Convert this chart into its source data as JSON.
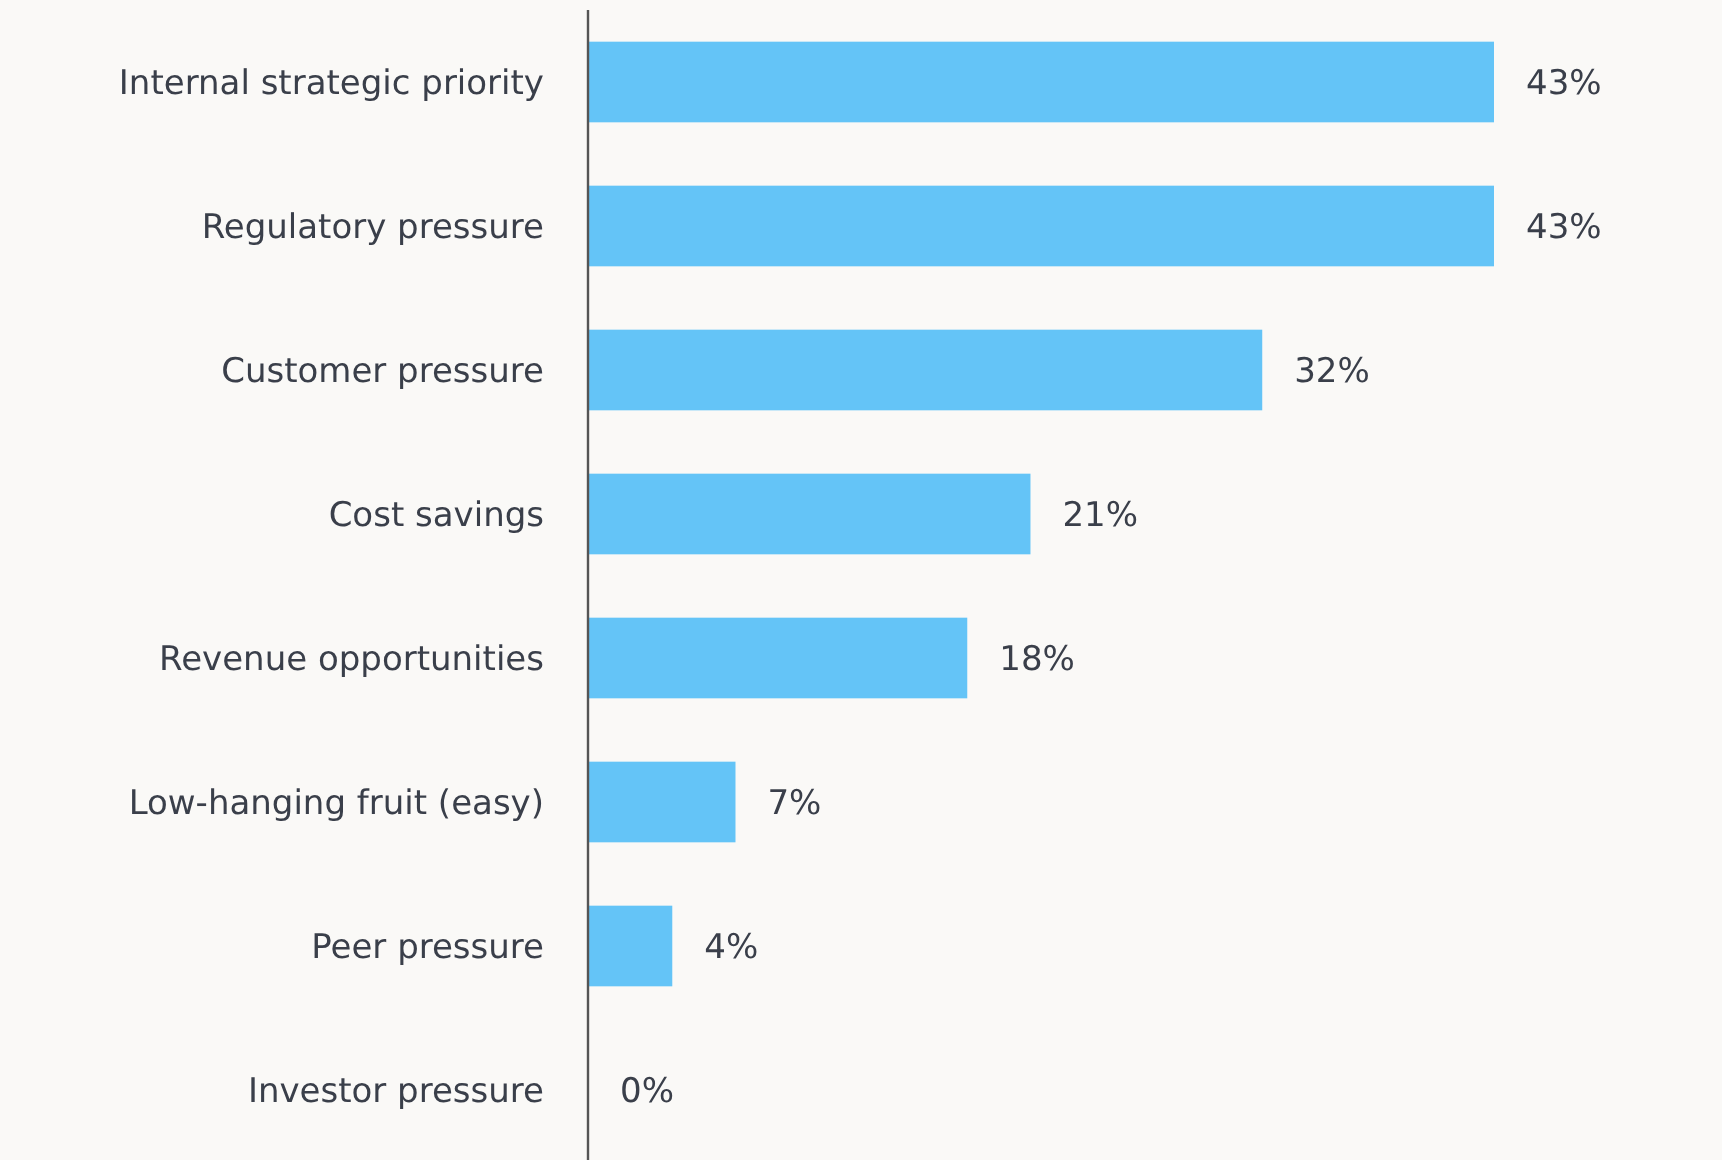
{
  "chart_data": {
    "type": "bar",
    "orientation": "horizontal",
    "categories": [
      "Internal strategic priority",
      "Regulatory pressure",
      "Customer pressure",
      "Cost savings",
      "Revenue opportunities",
      "Low-hanging fruit (easy)",
      "Peer pressure",
      "Investor pressure"
    ],
    "values": [
      43,
      43,
      32,
      21,
      18,
      7,
      4,
      0
    ],
    "value_labels": [
      "43%",
      "43%",
      "32%",
      "21%",
      "18%",
      "7%",
      "4%",
      "0%"
    ],
    "color": "#64c4f7"
  }
}
